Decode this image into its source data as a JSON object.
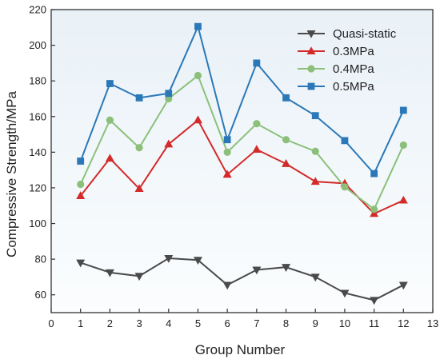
{
  "chart_data": {
    "type": "line",
    "title": "",
    "xlabel": "Group Number",
    "ylabel": "Compressive Strength/MPa",
    "xlim": [
      0,
      13
    ],
    "ylim": [
      50,
      220
    ],
    "xticks": [
      0,
      1,
      2,
      3,
      4,
      5,
      6,
      7,
      8,
      9,
      10,
      11,
      12,
      13
    ],
    "yticks": [
      60,
      80,
      100,
      120,
      140,
      160,
      180,
      200,
      220
    ],
    "legend_position": "top-right",
    "grid": false,
    "background": "gradient light blue to white",
    "x": [
      1,
      2,
      3,
      4,
      5,
      6,
      7,
      8,
      9,
      10,
      11,
      12
    ],
    "series": [
      {
        "name": "Quasi-static",
        "color": "#4a4a4a",
        "marker": "triangle-down",
        "values": [
          78,
          72.5,
          70.5,
          80.5,
          79.5,
          65.5,
          74,
          75.5,
          70,
          61,
          57,
          65.5
        ]
      },
      {
        "name": "0.3MPa",
        "color": "#d42a2a",
        "marker": "triangle-up",
        "values": [
          115.5,
          136.5,
          119.5,
          144.5,
          158,
          127.5,
          141.5,
          133.5,
          123.5,
          122.5,
          105.5,
          113
        ]
      },
      {
        "name": "0.4MPa",
        "color": "#8cc07a",
        "marker": "circle",
        "values": [
          122,
          158,
          142.5,
          170,
          183,
          140,
          156,
          147,
          140.5,
          120.5,
          108,
          144
        ]
      },
      {
        "name": "0.5MPa",
        "color": "#2b78b8",
        "marker": "square",
        "values": [
          135,
          178.5,
          170.5,
          173,
          210.5,
          147,
          190,
          170.5,
          160.5,
          146.5,
          128,
          163.5
        ]
      }
    ]
  }
}
